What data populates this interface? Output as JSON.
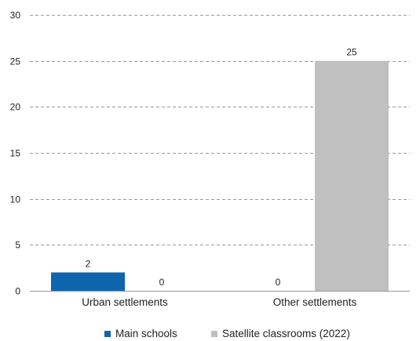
{
  "chart_data": {
    "type": "bar",
    "categories": [
      "Urban settlements",
      "Other settlements"
    ],
    "series": [
      {
        "name": "Main schools",
        "values": [
          2,
          0
        ],
        "color": "#0f64ae"
      },
      {
        "name": "Satellite classrooms (2022)",
        "values": [
          0,
          25
        ],
        "color": "#c0c0c0"
      }
    ],
    "yticks": [
      "0",
      "5",
      "10",
      "15",
      "20",
      "25",
      "30"
    ],
    "data_labels": [
      [
        "2",
        "0"
      ],
      [
        "0",
        "25"
      ]
    ],
    "ylim": [
      0,
      30
    ],
    "grid": true,
    "legend_position": "bottom"
  }
}
